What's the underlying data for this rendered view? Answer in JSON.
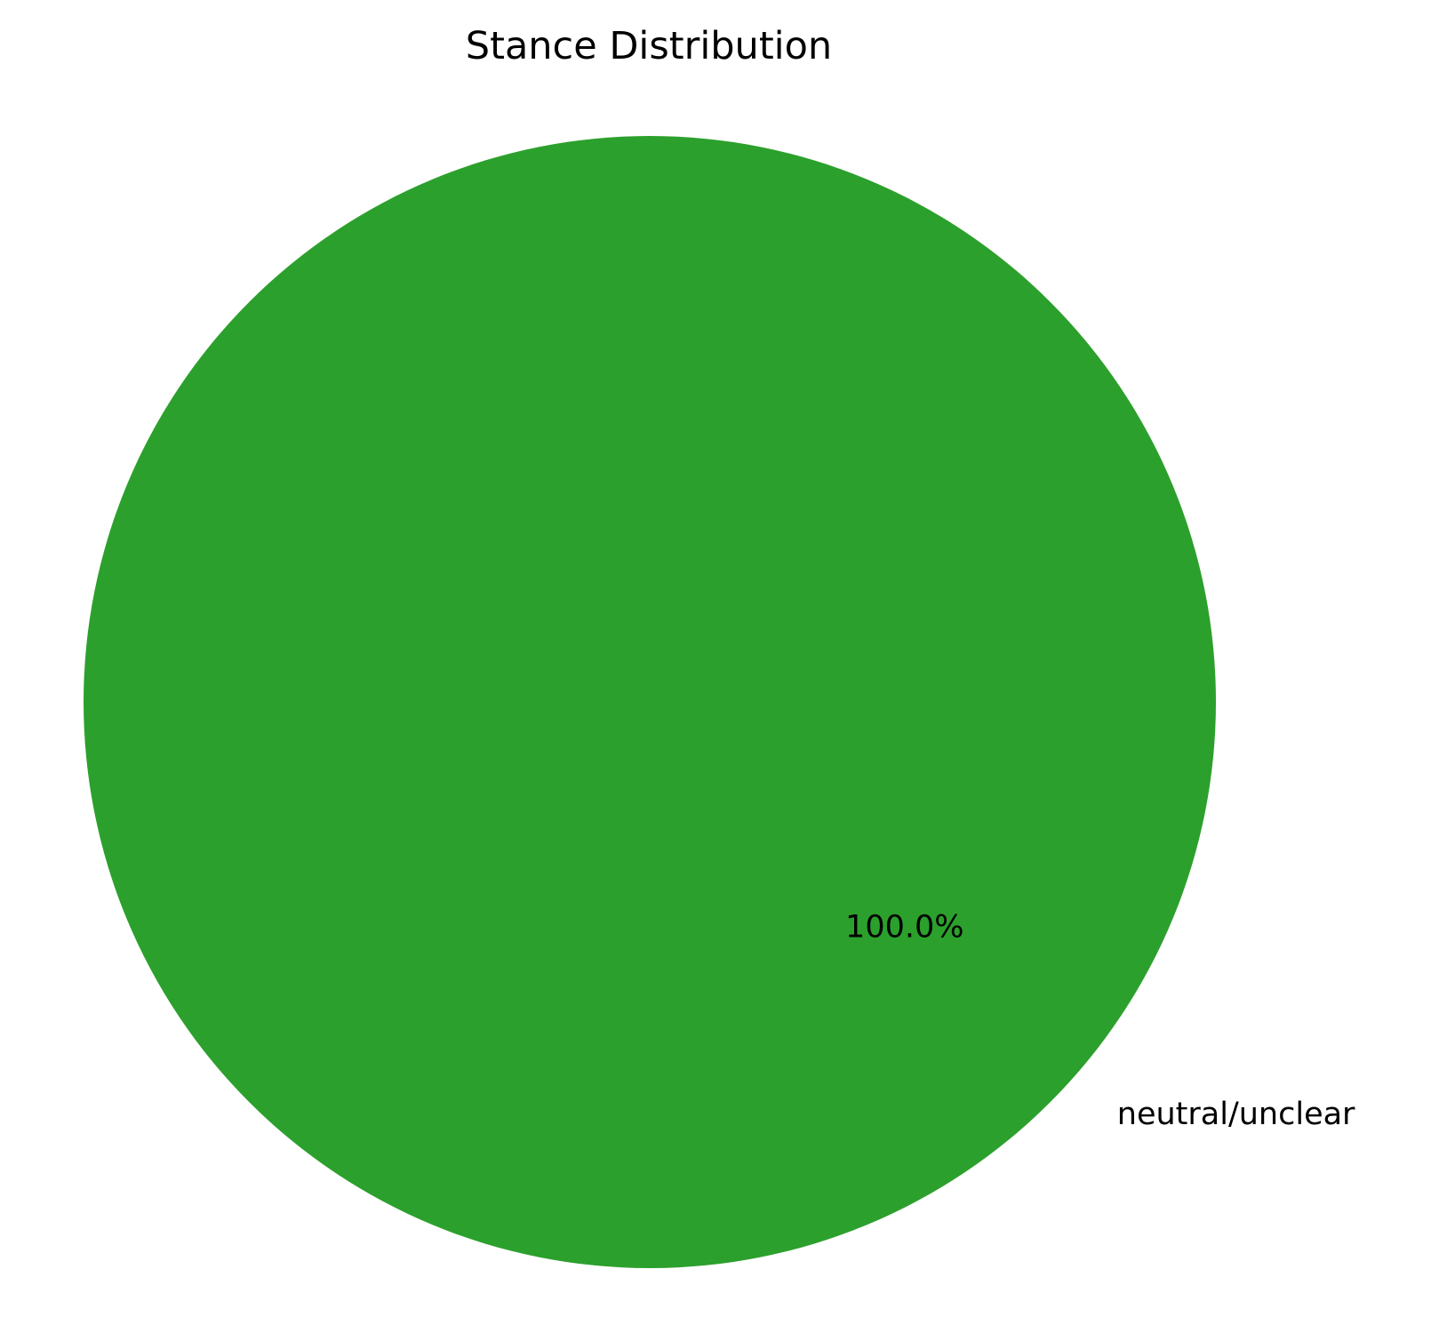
{
  "chart_data": {
    "type": "pie",
    "title": "Stance Distribution",
    "slices": [
      {
        "label": "neutral/unclear",
        "value": 100.0,
        "percent_label": "100.0%",
        "color": "#2ca02c"
      }
    ]
  }
}
